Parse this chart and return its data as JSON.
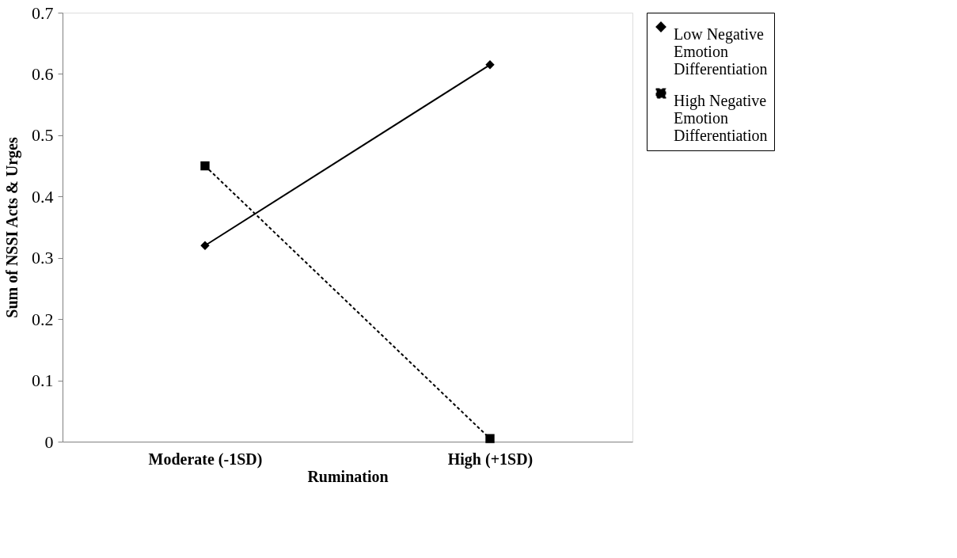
{
  "chart_data": {
    "type": "line",
    "xlabel": "Rumination",
    "ylabel": "Sum of NSSI Acts & Urges",
    "categories": [
      "Moderate (-1SD)",
      "High (+1SD)"
    ],
    "series": [
      {
        "name": "Low Negative Emotion Differentiation",
        "color": "#000000",
        "marker": "diamond",
        "line_style": "solid",
        "values": [
          0.32,
          0.615
        ]
      },
      {
        "name": "High Negative Emotion Differentiation",
        "color": "#000000",
        "marker": "square",
        "line_style": "dashed",
        "values": [
          0.45,
          0.005
        ]
      }
    ],
    "ylim": [
      0,
      0.7
    ],
    "yticks": [
      0,
      0.1,
      0.2,
      0.3,
      0.4,
      0.5,
      0.6,
      0.7
    ],
    "grid": false,
    "legend": "right"
  }
}
